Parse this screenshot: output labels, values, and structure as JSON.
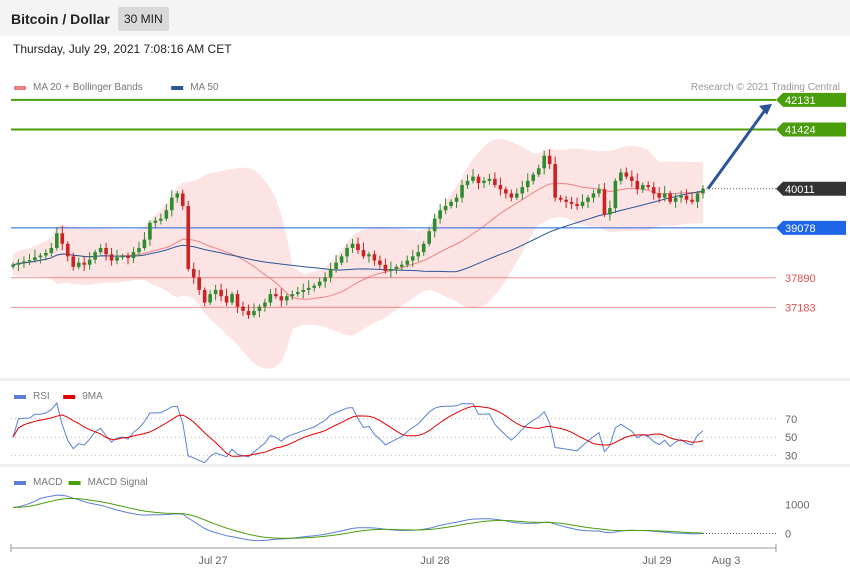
{
  "header": {
    "title": "Bitcoin / Dollar",
    "timeframe": "30 MIN"
  },
  "date_text": "Thursday, July 29, 2021 7:08:16 AM CET",
  "copyright": "Research © 2021 Trading Central",
  "colors": {
    "ma20": "#f08080",
    "ma50": "#2a5599",
    "green": "#4a9e0c",
    "blue_level": "#1e64e6",
    "red_level": "#e05050",
    "price_tag": "#333333",
    "bull": "#2e8b2e",
    "bear": "#cc2222",
    "band": "#fde4e4",
    "rsi": "#5b7fd9",
    "rsi_ma": "#e00000",
    "macd": "#5b7fd9",
    "macd_signal": "#4a9e0c",
    "arrow": "#2a5599"
  },
  "chart_data": [
    {
      "type": "candlestick",
      "title": "Bitcoin / Dollar",
      "legend": [
        {
          "name": "MA 20 + Bollinger Bands",
          "color": "#f08080"
        },
        {
          "name": "MA 50",
          "color": "#2a5599"
        }
      ],
      "ylim": [
        35500,
        42700
      ],
      "levels": [
        {
          "value": 42131,
          "label": "42131",
          "style": "resistance",
          "color": "#4a9e0c"
        },
        {
          "value": 41424,
          "label": "41424",
          "style": "resistance",
          "color": "#4a9e0c"
        },
        {
          "value": 40011,
          "label": "40011",
          "style": "last-price",
          "color": "#333333"
        },
        {
          "value": 39078,
          "label": "39078",
          "style": "pivot",
          "color": "#1e64e6"
        },
        {
          "value": 37890,
          "label": "37890",
          "style": "support",
          "color": "#e05050"
        },
        {
          "value": 37183,
          "label": "37183",
          "style": "support",
          "color": "#e05050"
        }
      ],
      "x_ticks": [
        "Jul 27",
        "Jul 28",
        "Jul 29",
        "Aug 3"
      ],
      "closes": [
        38200,
        38250,
        38280,
        38310,
        38380,
        38420,
        38480,
        38600,
        38950,
        38700,
        38400,
        38150,
        38250,
        38200,
        38320,
        38500,
        38600,
        38450,
        38300,
        38380,
        38400,
        38360,
        38500,
        38600,
        38800,
        39200,
        39250,
        39300,
        39500,
        39800,
        39900,
        39600,
        38100,
        37900,
        37600,
        37300,
        37500,
        37600,
        37450,
        37300,
        37500,
        37200,
        37100,
        37000,
        37100,
        37200,
        37300,
        37500,
        37450,
        37350,
        37450,
        37500,
        37550,
        37600,
        37650,
        37700,
        37800,
        37900,
        38100,
        38250,
        38400,
        38600,
        38700,
        38550,
        38400,
        38450,
        38300,
        38200,
        38050,
        38100,
        38150,
        38200,
        38300,
        38400,
        38500,
        38700,
        39000,
        39300,
        39500,
        39600,
        39700,
        39800,
        40100,
        40200,
        40300,
        40150,
        40200,
        40250,
        40100,
        40000,
        39900,
        39800,
        39900,
        40050,
        40200,
        40350,
        40500,
        40800,
        40600,
        39800,
        39750,
        39700,
        39650,
        39600,
        39700,
        39800,
        39900,
        40000,
        39400,
        39550,
        40200,
        40400,
        40300,
        40200,
        40000,
        40100,
        40050,
        39900,
        39800,
        39900,
        39700,
        39800,
        39850,
        39750,
        39700,
        39900,
        40011
      ],
      "series": [
        {
          "name": "MA 20 + Bollinger Bands"
        },
        {
          "name": "MA 50"
        }
      ]
    },
    {
      "type": "line",
      "legend": [
        {
          "name": "RSI",
          "color": "#5b7fd9"
        },
        {
          "name": "9MA",
          "color": "#e00000"
        }
      ],
      "ylim": [
        22,
        85
      ],
      "y_ticks": [
        70,
        50,
        30
      ]
    },
    {
      "type": "line",
      "legend": [
        {
          "name": "MACD",
          "color": "#5b7fd9"
        },
        {
          "name": "MACD Signal",
          "color": "#4a9e0c"
        }
      ],
      "ylim": [
        -500,
        1500
      ],
      "y_ticks": [
        1000,
        0
      ]
    }
  ]
}
